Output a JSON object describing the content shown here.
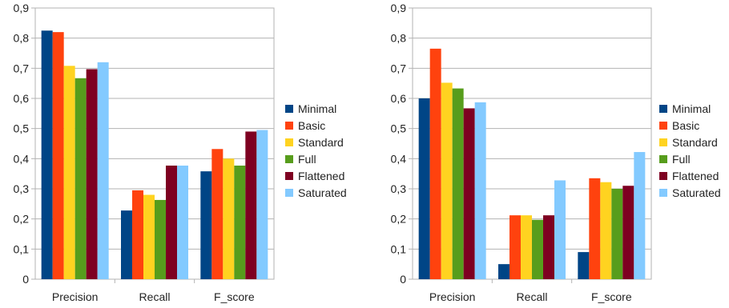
{
  "colors": {
    "Minimal": "#004586",
    "Basic": "#ff420e",
    "Standard": "#ffd320",
    "Full": "#579d1c",
    "Flattened": "#7e0021",
    "Saturated": "#83caff",
    "grid": "#b3b3b3",
    "axis": "#b3b3b3"
  },
  "chart_data": [
    {
      "type": "bar",
      "title": "",
      "xlabel": "",
      "ylabel": "",
      "ylim": [
        0,
        0.9
      ],
      "yticks": [
        "0",
        "0,1",
        "0,2",
        "0,3",
        "0,4",
        "0,5",
        "0,6",
        "0,7",
        "0,8",
        "0,9"
      ],
      "grid": true,
      "legend_position": "right",
      "categories": [
        "Precision",
        "Recall",
        "F_score"
      ],
      "series": [
        {
          "name": "Minimal",
          "values": [
            0.825,
            0.228,
            0.358
          ]
        },
        {
          "name": "Basic",
          "values": [
            0.82,
            0.295,
            0.432
          ]
        },
        {
          "name": "Standard",
          "values": [
            0.708,
            0.28,
            0.4
          ]
        },
        {
          "name": "Full",
          "values": [
            0.667,
            0.263,
            0.377
          ]
        },
        {
          "name": "Flattened",
          "values": [
            0.697,
            0.377,
            0.49
          ]
        },
        {
          "name": "Saturated",
          "values": [
            0.72,
            0.377,
            0.495
          ]
        }
      ]
    },
    {
      "type": "bar",
      "title": "",
      "xlabel": "",
      "ylabel": "",
      "ylim": [
        0,
        0.9
      ],
      "yticks": [
        "0",
        "0,1",
        "0,2",
        "0,3",
        "0,4",
        "0,5",
        "0,6",
        "0,7",
        "0,8",
        "0,9"
      ],
      "grid": true,
      "legend_position": "right",
      "categories": [
        "Precision",
        "Recall",
        "F_score"
      ],
      "series": [
        {
          "name": "Minimal",
          "values": [
            0.6,
            0.05,
            0.09
          ]
        },
        {
          "name": "Basic",
          "values": [
            0.765,
            0.212,
            0.335
          ]
        },
        {
          "name": "Standard",
          "values": [
            0.652,
            0.212,
            0.322
          ]
        },
        {
          "name": "Full",
          "values": [
            0.633,
            0.197,
            0.3
          ]
        },
        {
          "name": "Flattened",
          "values": [
            0.567,
            0.212,
            0.31
          ]
        },
        {
          "name": "Saturated",
          "values": [
            0.587,
            0.328,
            0.422
          ]
        }
      ]
    }
  ]
}
